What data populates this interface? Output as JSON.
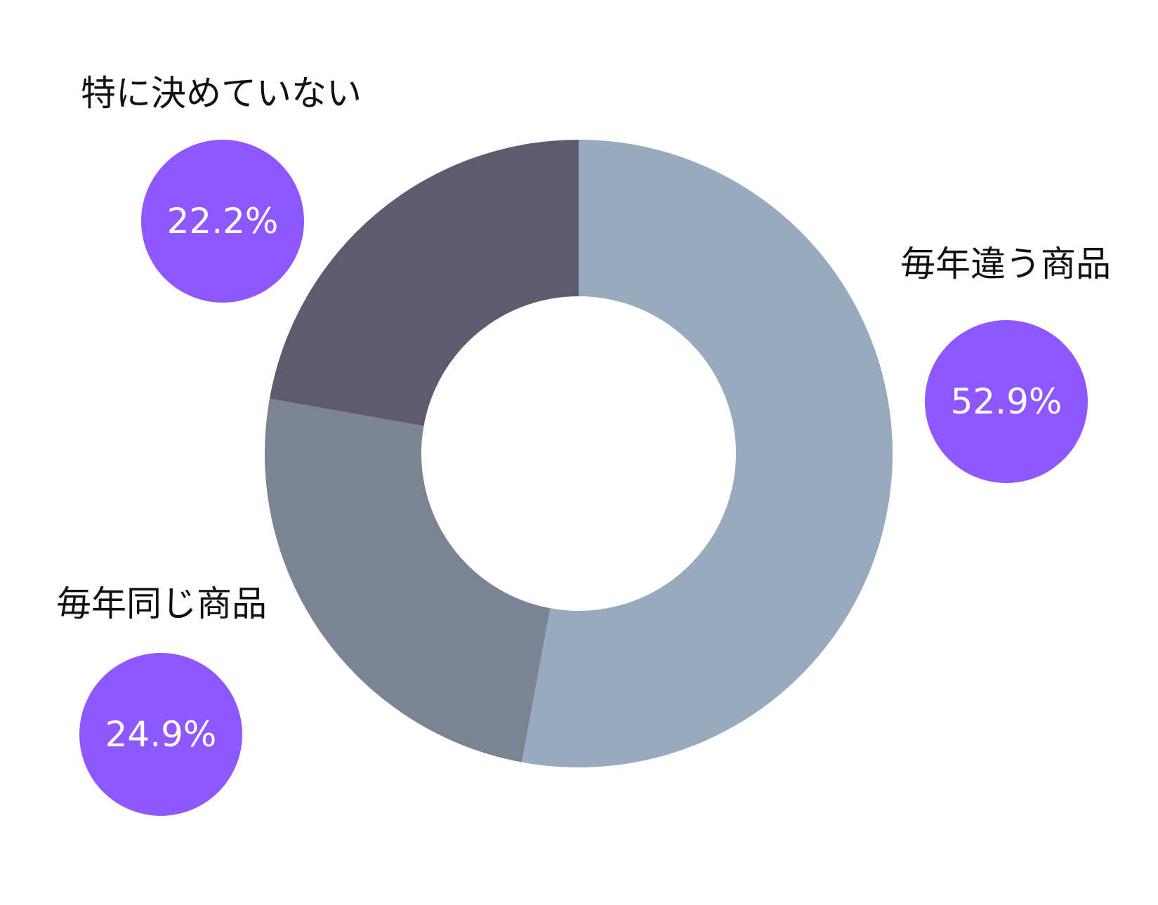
{
  "chart_data": {
    "type": "pie",
    "title": "",
    "categories": [
      "毎年違う商品",
      "毎年同じ商品",
      "特に決めていない"
    ],
    "values": [
      52.9,
      24.9,
      22.2
    ],
    "value_labels": [
      "52.9%",
      "24.9%",
      "22.2%"
    ],
    "unit": "%",
    "donut": true,
    "legend": "none"
  },
  "colors": {
    "slices": [
      "#98abbe",
      "#7b8395",
      "#5e5b6f"
    ],
    "badge": "#8f57ff",
    "badge_text": "#ffffff",
    "label_text": "#111111",
    "background": "#ffffff"
  }
}
